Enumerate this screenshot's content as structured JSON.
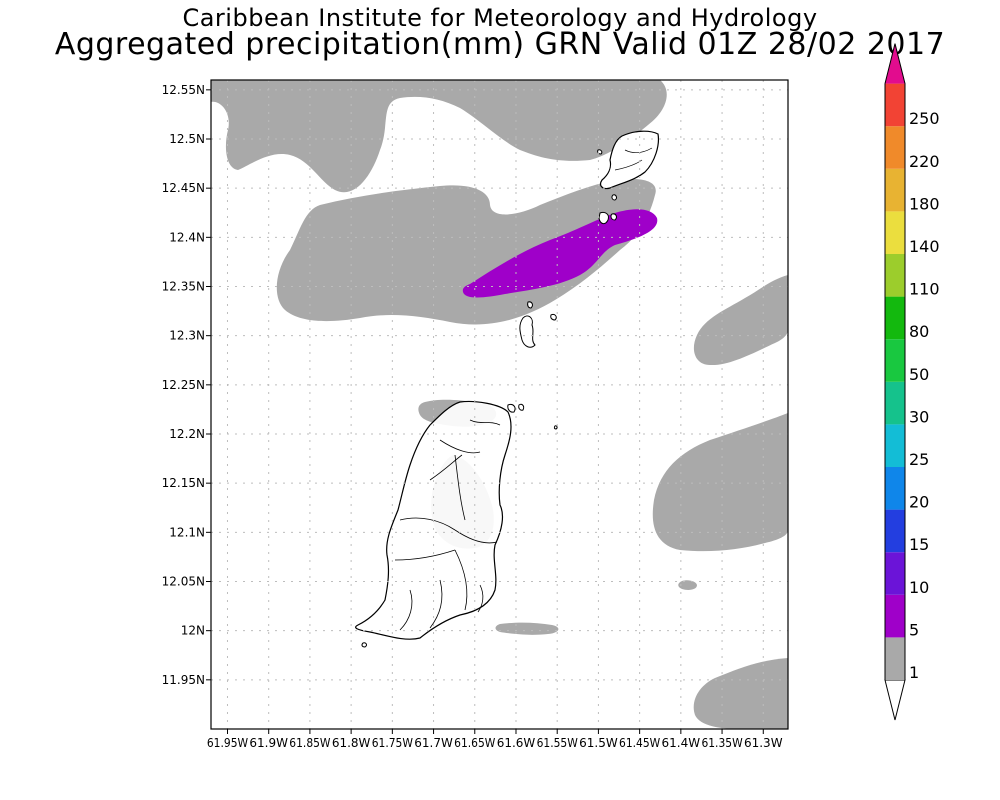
{
  "header": {
    "institute": "Caribbean Institute for Meteorology and Hydrology",
    "product": "Aggregated precipitation(mm) GRN Valid 01Z 28/02 2017"
  },
  "map": {
    "lon_range": [
      -61.97,
      -61.27
    ],
    "lat_range": [
      11.9,
      12.56
    ],
    "lat_ticks": [
      {
        "value": 12.55,
        "label": "12.55N"
      },
      {
        "value": 12.5,
        "label": "12.5N"
      },
      {
        "value": 12.45,
        "label": "12.45N"
      },
      {
        "value": 12.4,
        "label": "12.4N"
      },
      {
        "value": 12.35,
        "label": "12.35N"
      },
      {
        "value": 12.3,
        "label": "12.3N"
      },
      {
        "value": 12.25,
        "label": "12.25N"
      },
      {
        "value": 12.2,
        "label": "12.2N"
      },
      {
        "value": 12.15,
        "label": "12.15N"
      },
      {
        "value": 12.1,
        "label": "12.1N"
      },
      {
        "value": 12.05,
        "label": "12.05N"
      },
      {
        "value": 12.0,
        "label": "12N"
      },
      {
        "value": 11.95,
        "label": "11.95N"
      }
    ],
    "lon_ticks": [
      {
        "value": -61.95,
        "label": "61.95W"
      },
      {
        "value": -61.9,
        "label": "61.9W"
      },
      {
        "value": -61.85,
        "label": "61.85W"
      },
      {
        "value": -61.8,
        "label": "61.8W"
      },
      {
        "value": -61.75,
        "label": "61.75W"
      },
      {
        "value": -61.7,
        "label": "61.7W"
      },
      {
        "value": -61.65,
        "label": "61.65W"
      },
      {
        "value": -61.6,
        "label": "61.6W"
      },
      {
        "value": -61.55,
        "label": "61.55W"
      },
      {
        "value": -61.5,
        "label": "61.5W"
      },
      {
        "value": -61.45,
        "label": "61.45W"
      },
      {
        "value": -61.4,
        "label": "61.4W"
      },
      {
        "value": -61.35,
        "label": "61.35W"
      },
      {
        "value": -61.3,
        "label": "61.3W"
      }
    ],
    "gridlines": true,
    "land_fill": "#ffffff",
    "coast_color": "#000000"
  },
  "legend": {
    "bins": [
      {
        "label": "1",
        "color": "#a9a9a9"
      },
      {
        "label": "5",
        "color": "#9f00c9"
      },
      {
        "label": "10",
        "color": "#6b14d8"
      },
      {
        "label": "15",
        "color": "#233ee0"
      },
      {
        "label": "20",
        "color": "#0f86ea"
      },
      {
        "label": "25",
        "color": "#13bdd6"
      },
      {
        "label": "30",
        "color": "#15c28c"
      },
      {
        "label": "50",
        "color": "#19c840"
      },
      {
        "label": "80",
        "color": "#13b90e"
      },
      {
        "label": "110",
        "color": "#9ccd2c"
      },
      {
        "label": "140",
        "color": "#ebde3e"
      },
      {
        "label": "180",
        "color": "#e8b332"
      },
      {
        "label": "220",
        "color": "#f08a2a"
      },
      {
        "label": "250",
        "color": "#f24334"
      }
    ],
    "top_color": "#e20c8e",
    "bottom_color": "#ffffff"
  }
}
